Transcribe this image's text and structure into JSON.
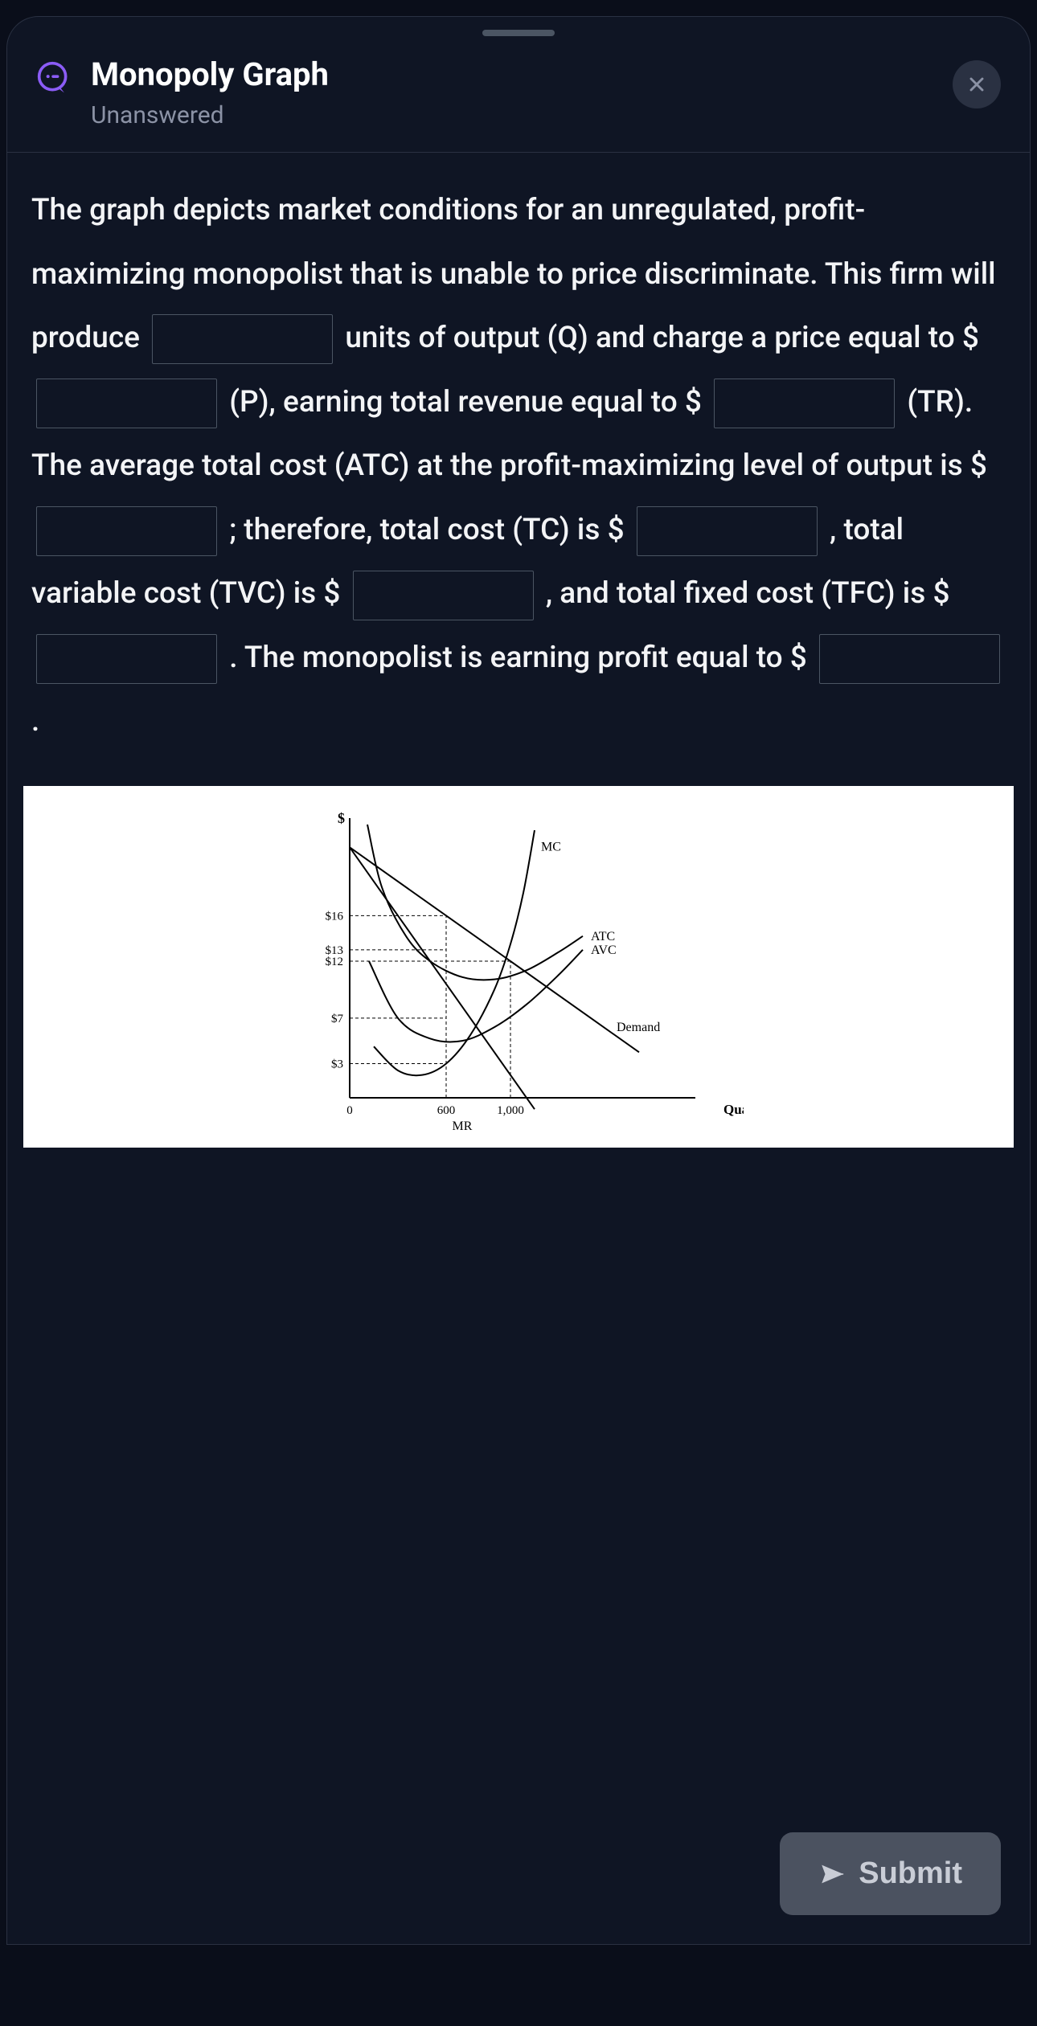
{
  "header": {
    "title": "Monopoly Graph",
    "subtitle": "Unanswered",
    "icon_name": "question-chat-icon",
    "icon_color": "#8b5cf6"
  },
  "close": {
    "icon_name": "close-icon"
  },
  "question": {
    "t1": "The graph depicts market conditions for an unregulated, profit-maximizing monopolist that is unable to price discriminate. This firm will produce ",
    "t2": " units of output (Q) and charge a price equal to $ ",
    "t3": " (P), earning total revenue equal to $ ",
    "t4": " (TR). The average total cost (ATC) at the profit-maximizing level of output is $ ",
    "t5": " ; therefore, total cost (TC) is $ ",
    "t6": " , total variable cost (TVC) is $ ",
    "t7": " , and total fixed cost (TFC) is $ ",
    "t8": " . The monopolist is earning profit equal to $ ",
    "t9": " ."
  },
  "graph": {
    "background_color": "#ffffff",
    "axis_color": "#000000",
    "curve_color": "#000000",
    "guide_color": "#000000",
    "y_axis_title": "$",
    "x_axis_title": "Quantity",
    "y_ticks": [
      {
        "label": "$16",
        "value": 16
      },
      {
        "label": "$13",
        "value": 13
      },
      {
        "label": "$12",
        "value": 12
      },
      {
        "label": "$7",
        "value": 7
      },
      {
        "label": "$3",
        "value": 3
      }
    ],
    "x_ticks": [
      {
        "label": "0",
        "value": 0
      },
      {
        "label": "600",
        "value": 600
      },
      {
        "label": "1,000",
        "value": 1000
      }
    ],
    "curve_labels": {
      "MC": "MC",
      "ATC": "ATC",
      "AVC": "AVC",
      "Demand": "Demand",
      "MR": "MR"
    },
    "x_domain": [
      0,
      1800
    ],
    "y_domain": [
      0,
      24
    ],
    "guides": [
      {
        "type": "v",
        "x": 600,
        "y_to": 16
      },
      {
        "type": "v",
        "x": 1000,
        "y_to": 12
      },
      {
        "type": "h",
        "y": 16,
        "x_to": 600
      },
      {
        "type": "h",
        "y": 13,
        "x_to": 600
      },
      {
        "type": "h",
        "y": 12,
        "x_to": 1000
      },
      {
        "type": "h",
        "y": 7,
        "x_to": 600
      },
      {
        "type": "h",
        "y": 3,
        "x_to": 600
      }
    ],
    "curves": {
      "demand": [
        [
          0,
          22
        ],
        [
          1800,
          4
        ]
      ],
      "mr": [
        [
          0,
          22
        ],
        [
          1150,
          -1
        ]
      ],
      "mc": [
        [
          150,
          4.5
        ],
        [
          300,
          2.4
        ],
        [
          450,
          2.0
        ],
        [
          600,
          3.0
        ],
        [
          750,
          5.5
        ],
        [
          900,
          9.5
        ],
        [
          1000,
          13.5
        ],
        [
          1080,
          18
        ],
        [
          1150,
          23.5
        ]
      ],
      "avc": [
        [
          120,
          12.0
        ],
        [
          300,
          7.0
        ],
        [
          500,
          5.2
        ],
        [
          700,
          5.0
        ],
        [
          900,
          6.2
        ],
        [
          1100,
          8.2
        ],
        [
          1300,
          10.8
        ],
        [
          1450,
          13.0
        ]
      ],
      "atc": [
        [
          110,
          24
        ],
        [
          200,
          18.5
        ],
        [
          350,
          14.2
        ],
        [
          500,
          12.0
        ],
        [
          700,
          10.6
        ],
        [
          900,
          10.4
        ],
        [
          1100,
          11.2
        ],
        [
          1300,
          12.8
        ],
        [
          1450,
          14.2
        ]
      ]
    }
  },
  "submit": {
    "label": "Submit",
    "icon_name": "send-icon"
  },
  "colors": {
    "background": "#0a0e1a",
    "card_bg": "#0f1524",
    "border": "#2a3142",
    "text": "#e5e7eb",
    "muted": "#8b92a5",
    "input_border": "#4b5563",
    "submit_bg": "#4b5260",
    "submit_text": "#c9cdd6"
  }
}
